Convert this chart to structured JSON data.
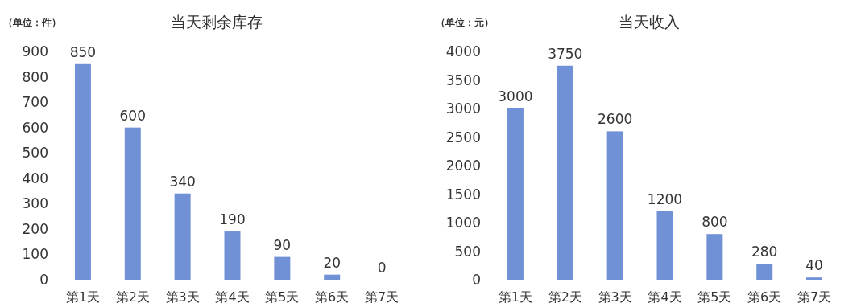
{
  "chart_data": [
    {
      "type": "bar",
      "title": "当天剩余库存",
      "annotations": [
        "（单位：件）"
      ],
      "categories": [
        "第1天",
        "第2天",
        "第3天",
        "第4天",
        "第5天",
        "第6天",
        "第7天"
      ],
      "values": [
        850,
        600,
        340,
        190,
        90,
        20,
        0
      ],
      "color": "#7191d6",
      "ylim": [
        0,
        900
      ],
      "yticks": [
        0,
        100,
        200,
        300,
        400,
        500,
        600,
        700,
        800,
        900
      ],
      "data_labels": true
    },
    {
      "type": "bar",
      "title": "当天收入",
      "annotations": [
        "（单位：元）"
      ],
      "categories": [
        "第1天",
        "第2天",
        "第3天",
        "第4天",
        "第5天",
        "第6天",
        "第7天"
      ],
      "values": [
        3000,
        3750,
        2600,
        1200,
        800,
        280,
        40
      ],
      "color": "#7191d6",
      "ylim": [
        0,
        4000
      ],
      "yticks": [
        0,
        500,
        1000,
        1500,
        2000,
        2500,
        3000,
        3500,
        4000
      ],
      "data_labels": true
    }
  ]
}
